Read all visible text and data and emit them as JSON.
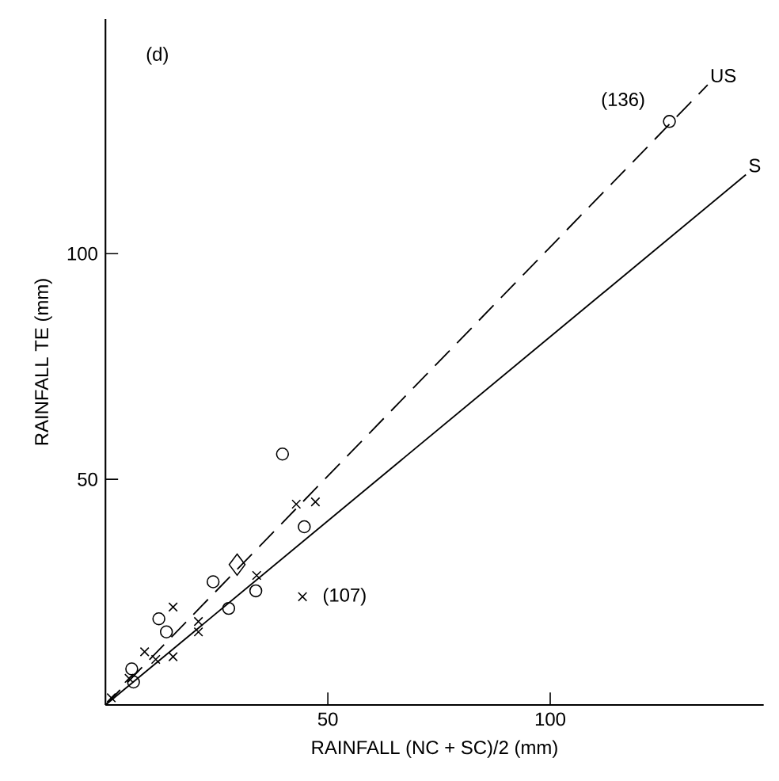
{
  "chart_data": {
    "type": "scatter",
    "xlabel": "RAINFALL   (NC + SC)/2   (mm)",
    "ylabel": "RAINFALL   TE   (mm)",
    "xlim": [
      0,
      148
    ],
    "ylim": [
      0,
      152
    ],
    "xticks": [
      50,
      100
    ],
    "yticks": [
      50,
      100
    ],
    "series": [
      {
        "marker": "circle",
        "color": "#000000",
        "x": [
          39.8,
          44.7,
          24.2,
          33.8,
          27.7,
          12.0,
          13.7,
          5.9,
          6.3,
          126.8
        ],
        "values": [
          55.6,
          39.5,
          27.3,
          25.3,
          21.4,
          19.1,
          16.2,
          8.0,
          5.1,
          129.3
        ]
      },
      {
        "marker": "cross",
        "color": "#000000",
        "x": [
          42.9,
          47.2,
          34.0,
          44.3,
          15.2,
          8.8,
          11.3,
          15.2,
          20.9,
          20.9,
          5.3,
          1.3
        ],
        "values": [
          44.5,
          45.0,
          28.7,
          24.0,
          21.7,
          11.8,
          10.1,
          10.7,
          18.5,
          16.2,
          5.9,
          1.6
        ]
      },
      {
        "marker": "diamond",
        "color": "#000000",
        "x": [
          29.6
        ],
        "values": [
          31.1
        ]
      },
      {
        "type": "line",
        "name": "US",
        "line_style": "dashed",
        "color": "#000000",
        "x": [
          0,
          135.4
        ],
        "values": [
          0,
          137.4
        ]
      },
      {
        "type": "line",
        "name": "S",
        "line_style": "solid",
        "color": "#000000",
        "x": [
          0,
          144
        ],
        "values": [
          0,
          117.5
        ]
      }
    ],
    "annotations": [
      "(d)",
      {
        "text": "(136)",
        "x": 126.8,
        "y": 129.3
      },
      {
        "text": "(107)",
        "x": 44.3,
        "y": 24.0
      }
    ]
  }
}
